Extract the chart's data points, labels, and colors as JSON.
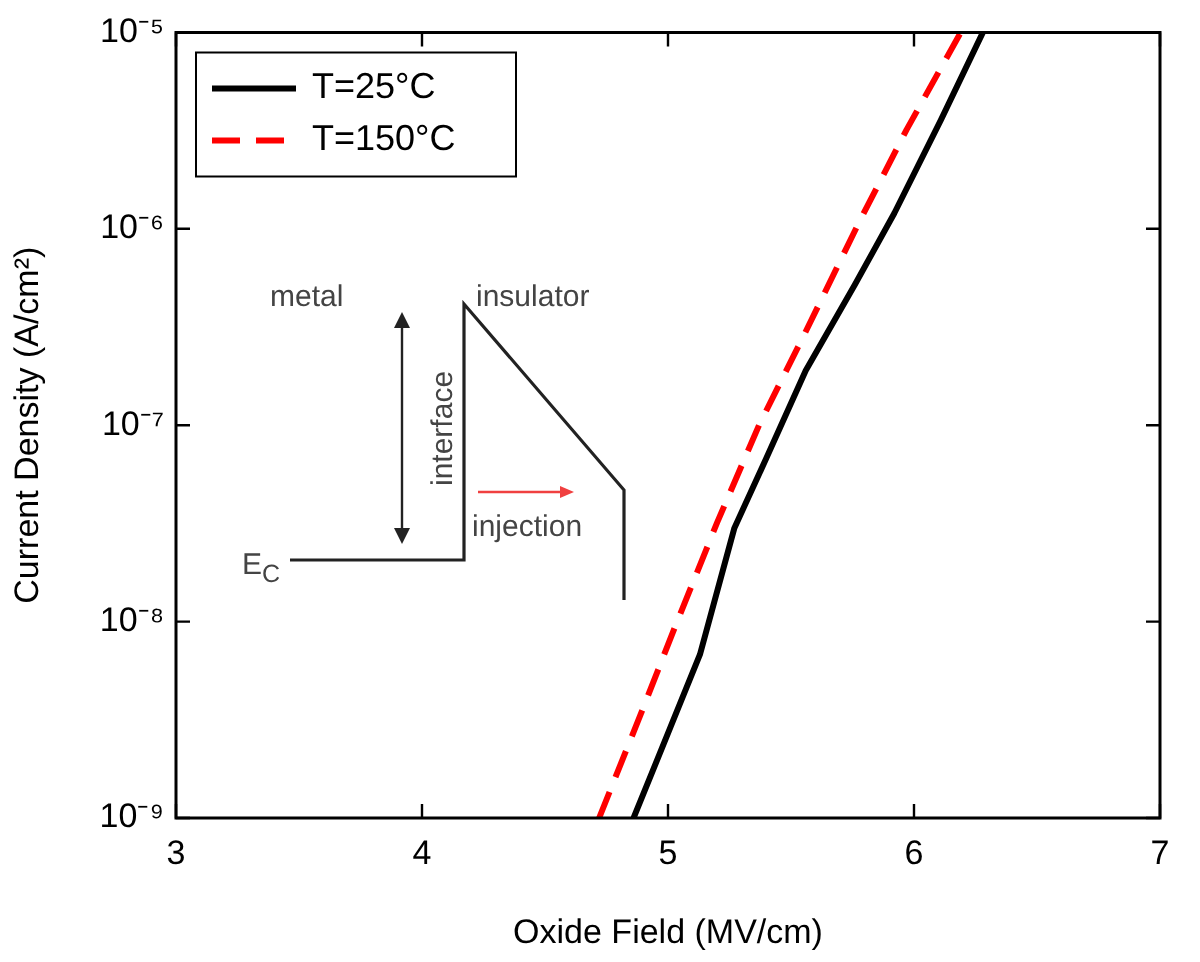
{
  "chart_data": {
    "type": "line",
    "xlabel": "Oxide Field (MV/cm)",
    "ylabel": "Current Density (A/cm²)",
    "log": "y",
    "xlim": [
      3,
      7
    ],
    "xticks": [
      3,
      4,
      5,
      6,
      7
    ],
    "ylim": [
      1e-09,
      1e-05
    ],
    "yticks": [
      {
        "value": 1e-09,
        "label": "10⁻⁹"
      },
      {
        "value": 1e-08,
        "label": "10⁻⁸"
      },
      {
        "value": 1e-07,
        "label": "10⁻⁷"
      },
      {
        "value": 1e-06,
        "label": "10⁻⁶"
      },
      {
        "value": 1e-05,
        "label": "10⁻⁵"
      }
    ],
    "legend": "top left",
    "marker": "none",
    "series": [
      {
        "name": "T=25°C",
        "color": "#000000",
        "line_style": "solid",
        "x": [
          4.86,
          5.01,
          5.13,
          5.27,
          5.4,
          5.56,
          5.76,
          5.92,
          6.11,
          6.28
        ],
        "values": [
          1e-09,
          2.9e-09,
          6.8e-09,
          3e-08,
          6.8e-08,
          1.9e-07,
          5.2e-07,
          1.2e-06,
          3.6e-06,
          1e-05
        ]
      },
      {
        "name": "T=150°C",
        "color": "#ff0000",
        "line_style": "dashed",
        "x": [
          4.72,
          4.89,
          5.03,
          5.2,
          5.37,
          5.56,
          5.78,
          5.97,
          6.19
        ],
        "values": [
          1e-09,
          3.4e-09,
          9.5e-09,
          3.2e-08,
          1e-07,
          3e-07,
          1.1e-06,
          3.2e-06,
          1e-05
        ]
      }
    ],
    "annotations": [
      "metal",
      "insulator",
      "interface",
      "injection",
      "E$_{C}$"
    ]
  }
}
